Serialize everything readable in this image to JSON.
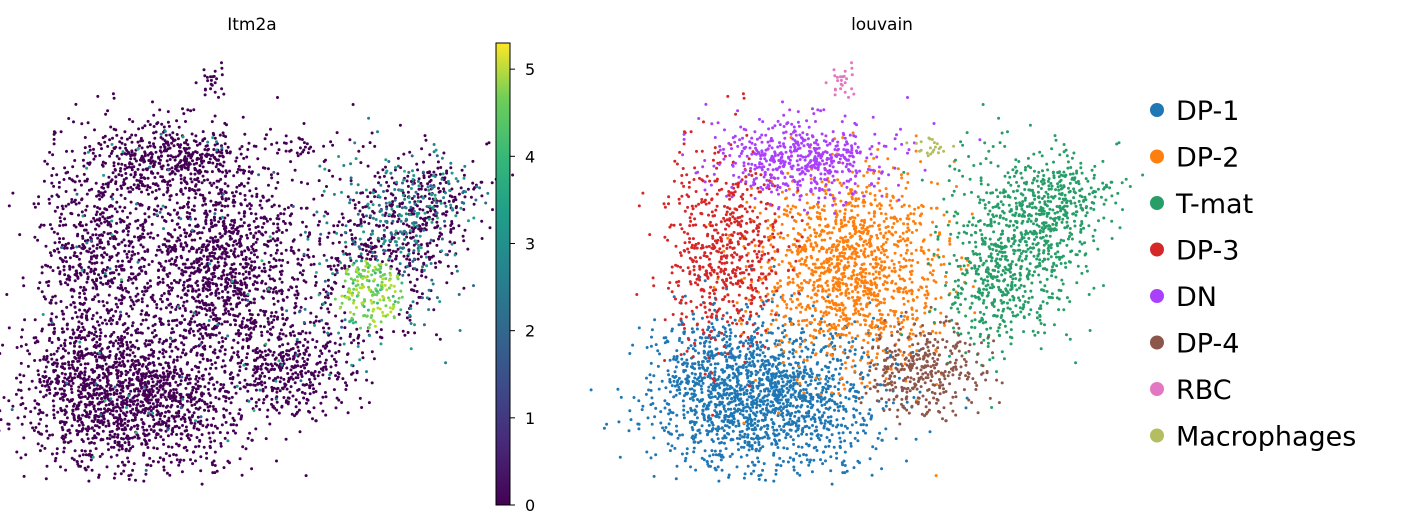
{
  "chart_data": [
    {
      "type": "scatter",
      "title": "Itm2a",
      "xlabel": "",
      "ylabel": "",
      "color_by": "continuous",
      "colormap": "viridis",
      "colorbar": {
        "min": 0,
        "max": 5.3,
        "ticks": [
          "0",
          "1",
          "2",
          "3",
          "4",
          "5"
        ],
        "tick_values": [
          0,
          1,
          2,
          3,
          4,
          5
        ]
      },
      "background_color": "#440154",
      "high_expression_region": "bright-green cluster inside the T-mat region, values up to about 5"
    },
    {
      "type": "scatter",
      "title": "louvain",
      "xlabel": "",
      "ylabel": "",
      "color_by": "categorical",
      "legend_position": "right",
      "categories": [
        {
          "name": "DP-1",
          "color": "#1f77b4"
        },
        {
          "name": "DP-2",
          "color": "#ff7f0e"
        },
        {
          "name": "T-mat",
          "color": "#279e68"
        },
        {
          "name": "DP-3",
          "color": "#d62728"
        },
        {
          "name": "DN",
          "color": "#aa40fc"
        },
        {
          "name": "DP-4",
          "color": "#8c564b"
        },
        {
          "name": "RBC",
          "color": "#e377c2"
        },
        {
          "name": "Macrophages",
          "color": "#b5bd61"
        }
      ]
    }
  ]
}
